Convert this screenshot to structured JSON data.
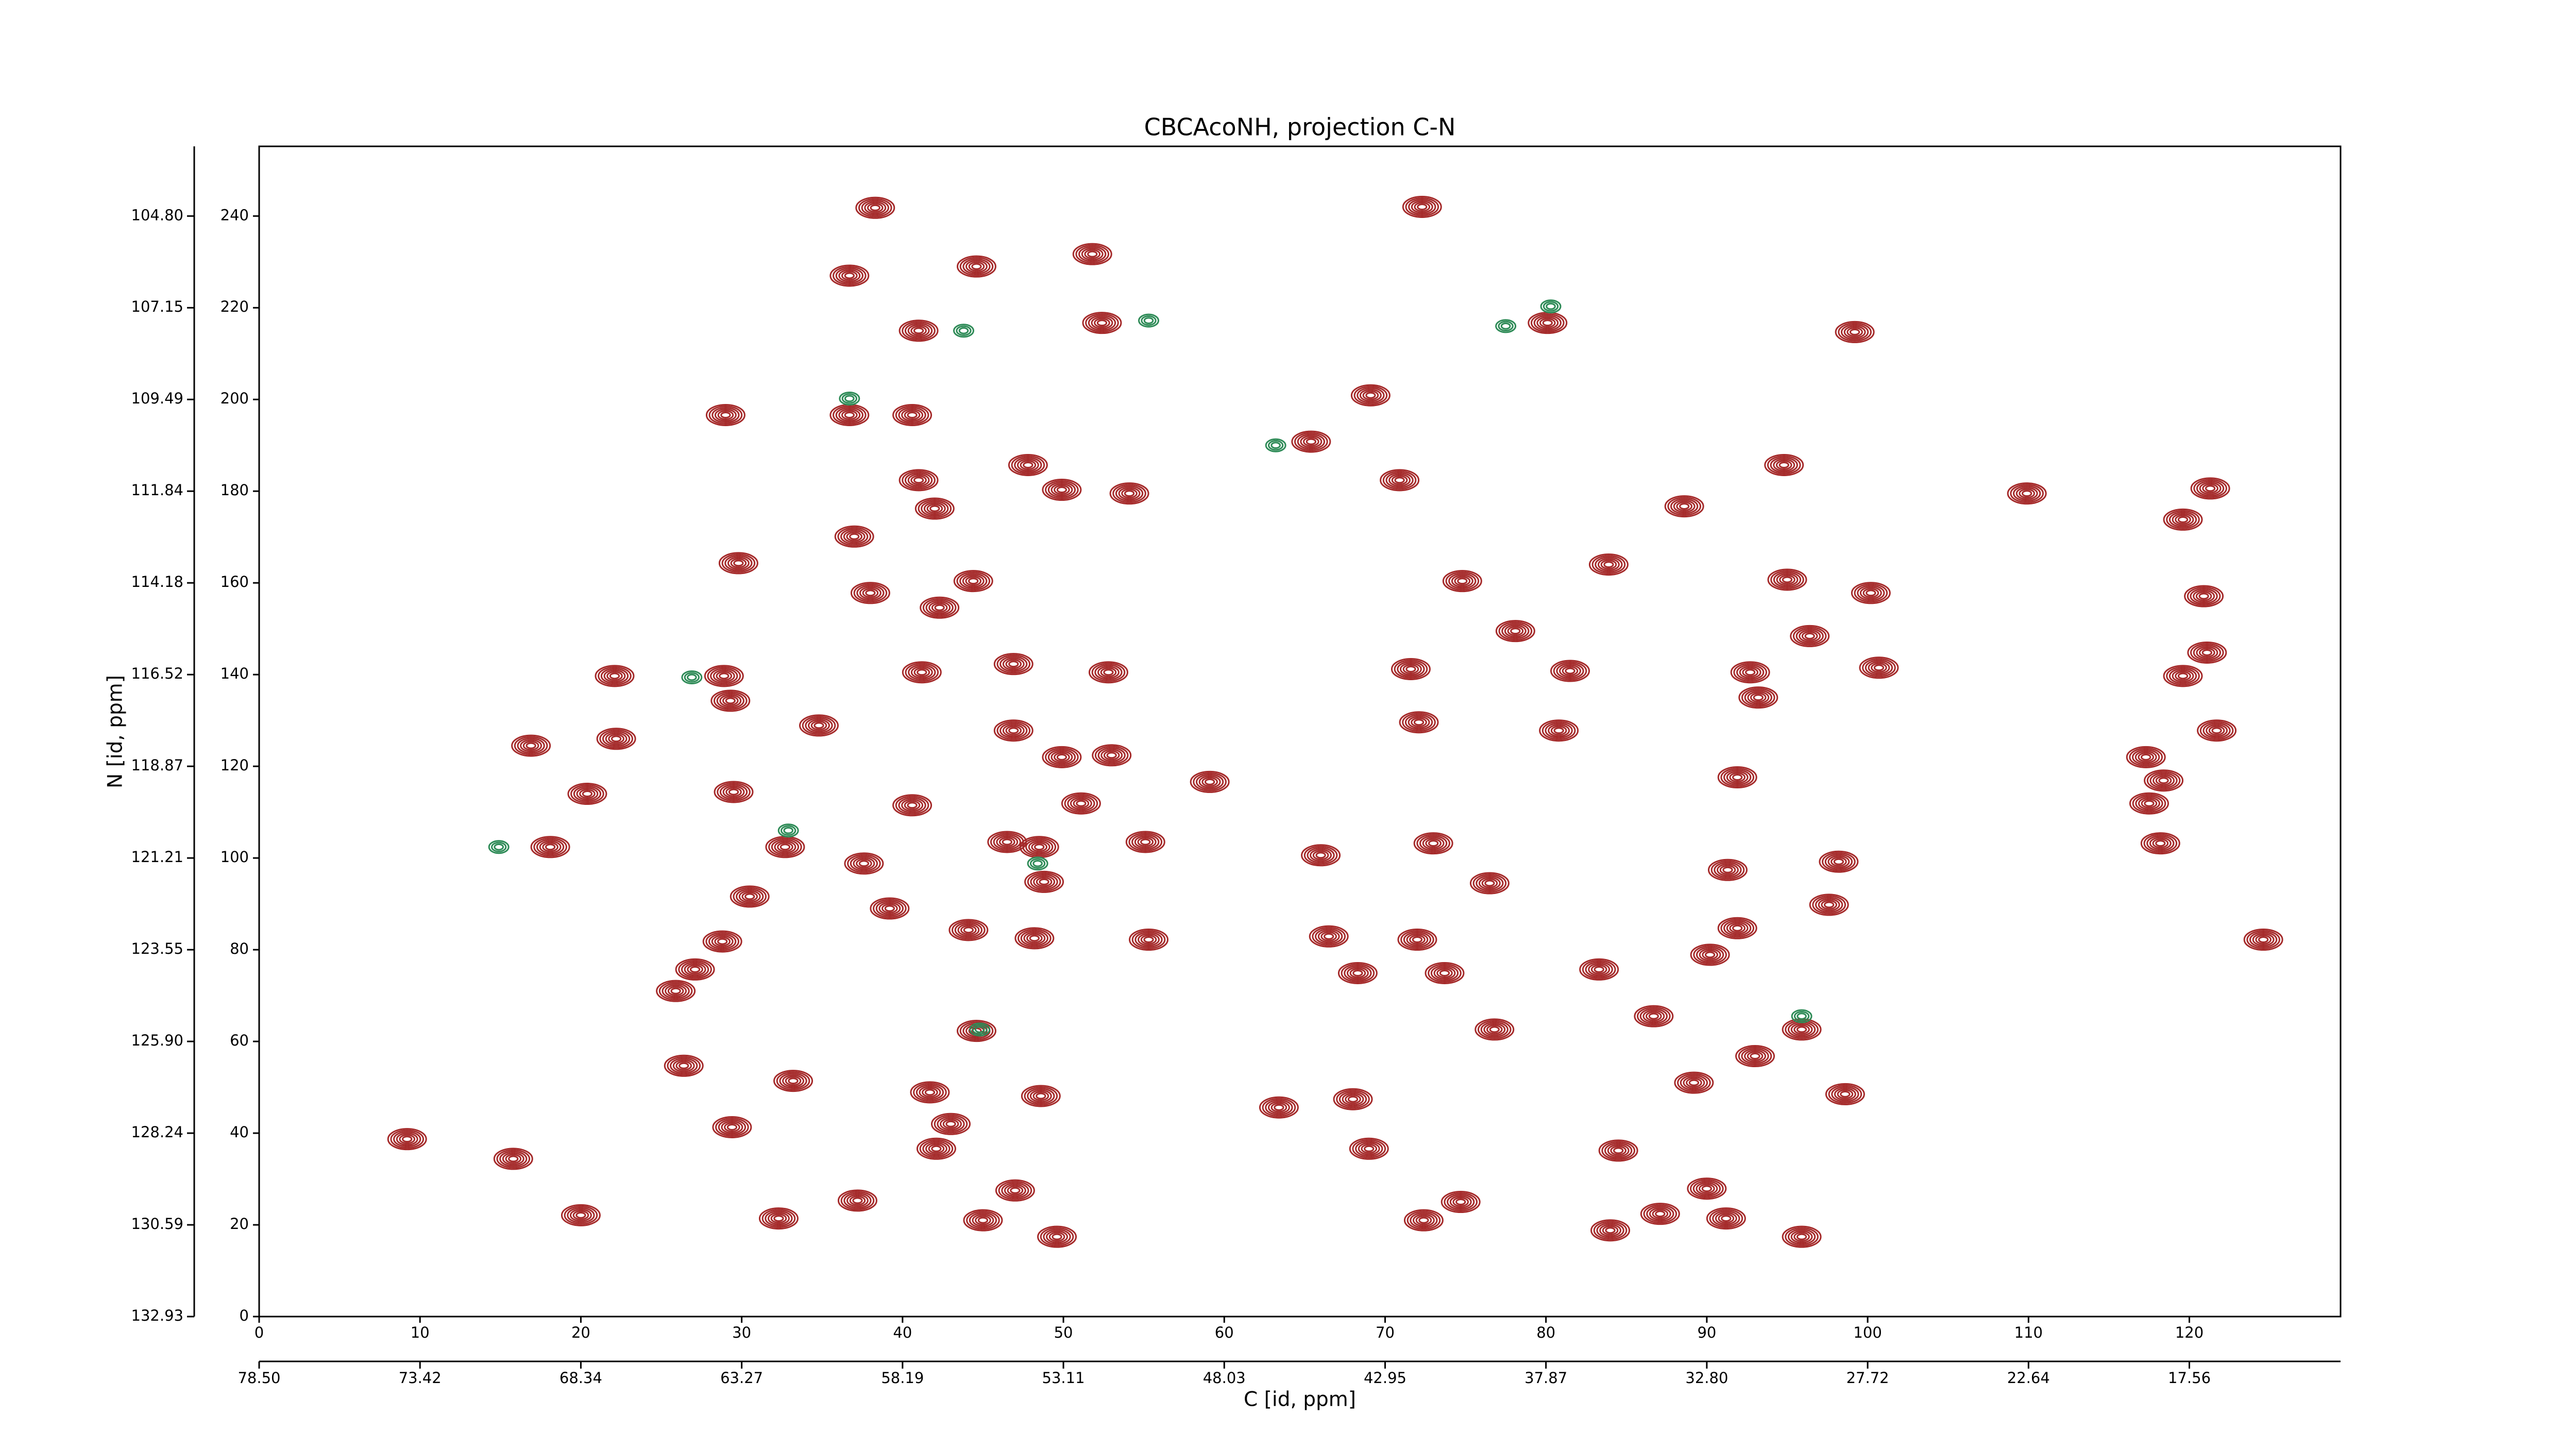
{
  "chart_data": {
    "type": "contour",
    "title": "CBCAcoNH, projection C-N",
    "xlabel": "C [id, ppm]",
    "ylabel": "N [id, ppm]",
    "xlim": [
      0,
      129.4
    ],
    "ylim": [
      0,
      255.2
    ],
    "xticks": [
      0,
      10,
      20,
      30,
      40,
      50,
      60,
      70,
      80,
      90,
      100,
      110,
      120
    ],
    "yticks": [
      0,
      20,
      40,
      60,
      80,
      100,
      120,
      140,
      160,
      180,
      200,
      220,
      240
    ],
    "x2ticks": [
      {
        "value": 0,
        "label": "78.50"
      },
      {
        "value": 10,
        "label": "73.42"
      },
      {
        "value": 20,
        "label": "68.34"
      },
      {
        "value": 30,
        "label": "63.27"
      },
      {
        "value": 40,
        "label": "58.19"
      },
      {
        "value": 50,
        "label": "53.11"
      },
      {
        "value": 60,
        "label": "48.03"
      },
      {
        "value": 70,
        "label": "42.95"
      },
      {
        "value": 80,
        "label": "37.87"
      },
      {
        "value": 90,
        "label": "32.80"
      },
      {
        "value": 100,
        "label": "27.72"
      },
      {
        "value": 110,
        "label": "22.64"
      },
      {
        "value": 120,
        "label": "17.56"
      }
    ],
    "y2ticks": [
      {
        "value": 0,
        "label": "132.93"
      },
      {
        "value": 20,
        "label": "130.59"
      },
      {
        "value": 40,
        "label": "128.24"
      },
      {
        "value": 60,
        "label": "125.90"
      },
      {
        "value": 80,
        "label": "123.55"
      },
      {
        "value": 100,
        "label": "121.21"
      },
      {
        "value": 120,
        "label": "118.87"
      },
      {
        "value": 140,
        "label": "116.52"
      },
      {
        "value": 160,
        "label": "114.18"
      },
      {
        "value": 180,
        "label": "111.84"
      },
      {
        "value": 200,
        "label": "109.49"
      },
      {
        "value": 220,
        "label": "107.15"
      },
      {
        "value": 240,
        "label": "104.80"
      }
    ],
    "series": [
      {
        "color": "#a52a2a",
        "x": [
          38.3,
          36.7,
          44.6,
          51.8,
          41,
          52.4,
          80.1,
          99.2,
          72.3,
          29,
          36.7,
          40.6,
          69.1,
          65.4,
          47.8,
          41,
          54.1,
          42,
          49.9,
          109.9,
          121.3,
          119.6,
          94.8,
          88.6,
          70.9,
          37,
          29.8,
          38,
          42.3,
          44.4,
          95,
          100.2,
          120.9,
          96.4,
          78.1,
          83.9,
          74.8,
          41.2,
          46.9,
          28.9,
          29.3,
          52.8,
          92.7,
          100.7,
          121.1,
          119.6,
          81.5,
          71.6,
          121.7,
          93.2,
          22.1,
          46.9,
          80.8,
          72.1,
          34.8,
          22.2,
          16.9,
          49.9,
          53,
          59.1,
          91.9,
          117.3,
          118.4,
          117.5,
          118.2,
          20.4,
          29.5,
          40.6,
          51.1,
          55.1,
          18.1,
          32.7,
          37.6,
          48.5,
          46.5,
          48.8,
          73,
          76.5,
          66,
          91.3,
          98.2,
          97.6,
          30.5,
          39.2,
          44.1,
          48.2,
          55.3,
          66.5,
          72,
          91.9,
          90.2,
          124.6,
          28.8,
          27.1,
          25.9,
          68.3,
          73.7,
          83.3,
          44.6,
          95.9,
          86.7,
          76.8,
          93,
          26.4,
          33.2,
          41.7,
          48.6,
          63.4,
          68,
          89.2,
          98.6,
          29.4,
          43,
          42.1,
          69,
          84.5,
          15.8,
          9.2,
          20,
          32.3,
          45,
          91.2,
          49.6,
          95.9,
          84,
          87.1,
          74.7,
          90,
          37.2,
          47,
          72.4
        ],
        "y": [
          241.8,
          227,
          229,
          231.7,
          215,
          216.7,
          216.7,
          214.7,
          242,
          196.6,
          196.6,
          196.6,
          200.9,
          190.8,
          185.7,
          182.4,
          179.5,
          176.2,
          180.3,
          179.5,
          180.6,
          173.8,
          185.7,
          176.7,
          182.4,
          170.1,
          164.3,
          157.8,
          154.6,
          160.4,
          160.7,
          157.8,
          157.1,
          148.4,
          149.5,
          164,
          160.4,
          140.5,
          142.3,
          139.7,
          134.3,
          140.5,
          140.5,
          141.5,
          144.8,
          139.7,
          140.8,
          141.2,
          127.8,
          135,
          139.7,
          127.8,
          127.8,
          129.6,
          128.9,
          126,
          124.5,
          122,
          122.4,
          116.6,
          117.6,
          122,
          116.9,
          111.9,
          103.2,
          114,
          114.4,
          111.5,
          111.9,
          103.5,
          102.4,
          102.4,
          98.8,
          102.4,
          103.5,
          94.8,
          103.2,
          94.5,
          100.6,
          97.4,
          99.2,
          89.8,
          91.6,
          89,
          84.3,
          82.5,
          82.2,
          82.9,
          82.2,
          84.7,
          78.9,
          82.2,
          81.8,
          75.7,
          71,
          74.9,
          74.9,
          75.7,
          62.3,
          62.6,
          65.5,
          62.6,
          56.8,
          54.7,
          51.4,
          48.9,
          48.1,
          45.6,
          47.4,
          51,
          48.5,
          41.3,
          42,
          36.6,
          36.6,
          36.2,
          34.4,
          38.7,
          22.1,
          21.4,
          21,
          21.4,
          17.4,
          17.4,
          18.8,
          22.4,
          25,
          27.9,
          25.3,
          27.5,
          21
        ]
      },
      {
        "color": "#2e8b57",
        "x": [
          14.9,
          26.9,
          32.9,
          44.8,
          48.4,
          95.9,
          80.3,
          36.7,
          43.8,
          55.3,
          63.2,
          77.5
        ],
        "y": [
          102.4,
          139.4,
          106,
          62.6,
          98.8,
          65.5,
          220.3,
          200.2,
          215,
          217.2,
          190,
          216
        ]
      }
    ]
  }
}
